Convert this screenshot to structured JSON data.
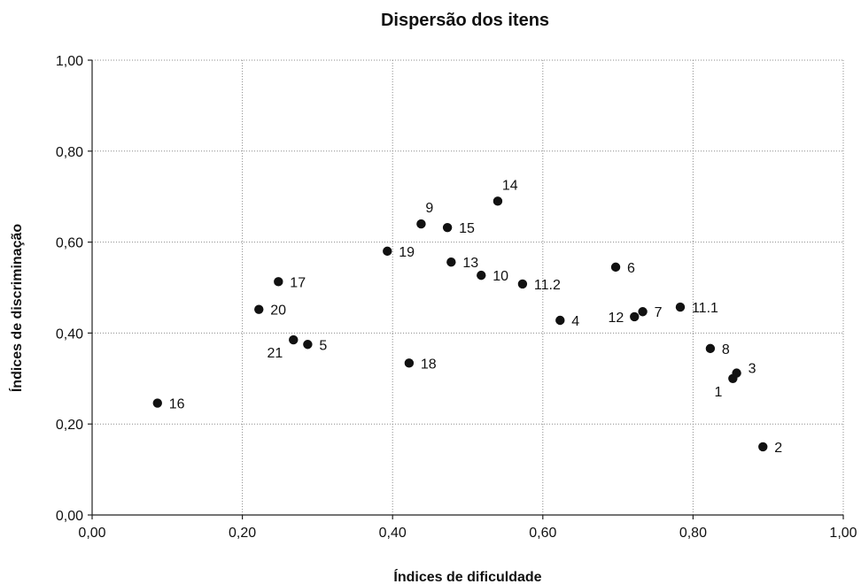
{
  "chart_data": {
    "type": "scatter",
    "title": "Dispersão dos itens",
    "xlabel": "Índices de dificuldade",
    "ylabel": "Índices de discriminação",
    "xlim": [
      0,
      1
    ],
    "ylim": [
      0,
      1
    ],
    "xticks": [
      "0,00",
      "0,20",
      "0,40",
      "0,60",
      "0,80",
      "1,00"
    ],
    "yticks": [
      "0,00",
      "0,20",
      "0,40",
      "0,60",
      "0,80",
      "1,00"
    ],
    "grid": true,
    "points": [
      {
        "label": "1",
        "x": 0.853,
        "y": 0.3,
        "pos": "left-below"
      },
      {
        "label": "2",
        "x": 0.893,
        "y": 0.15,
        "pos": "right"
      },
      {
        "label": "3",
        "x": 0.858,
        "y": 0.312,
        "pos": "right-up"
      },
      {
        "label": "4",
        "x": 0.623,
        "y": 0.428,
        "pos": "right"
      },
      {
        "label": "5",
        "x": 0.287,
        "y": 0.375,
        "pos": "right"
      },
      {
        "label": "6",
        "x": 0.697,
        "y": 0.545,
        "pos": "right"
      },
      {
        "label": "7",
        "x": 0.733,
        "y": 0.447,
        "pos": "right"
      },
      {
        "label": "8",
        "x": 0.823,
        "y": 0.366,
        "pos": "right"
      },
      {
        "label": "9",
        "x": 0.438,
        "y": 0.64,
        "pos": "above"
      },
      {
        "label": "10",
        "x": 0.518,
        "y": 0.527,
        "pos": "right"
      },
      {
        "label": "11.1",
        "x": 0.783,
        "y": 0.457,
        "pos": "right"
      },
      {
        "label": "11.2",
        "x": 0.573,
        "y": 0.508,
        "pos": "right"
      },
      {
        "label": "12",
        "x": 0.722,
        "y": 0.436,
        "pos": "left"
      },
      {
        "label": "13",
        "x": 0.478,
        "y": 0.556,
        "pos": "right"
      },
      {
        "label": "14",
        "x": 0.54,
        "y": 0.69,
        "pos": "above"
      },
      {
        "label": "15",
        "x": 0.473,
        "y": 0.632,
        "pos": "right"
      },
      {
        "label": "16",
        "x": 0.087,
        "y": 0.246,
        "pos": "right"
      },
      {
        "label": "17",
        "x": 0.248,
        "y": 0.513,
        "pos": "right"
      },
      {
        "label": "18",
        "x": 0.422,
        "y": 0.334,
        "pos": "right"
      },
      {
        "label": "19",
        "x": 0.393,
        "y": 0.58,
        "pos": "right"
      },
      {
        "label": "20",
        "x": 0.222,
        "y": 0.452,
        "pos": "right"
      },
      {
        "label": "21",
        "x": 0.268,
        "y": 0.385,
        "pos": "left-below"
      }
    ]
  }
}
